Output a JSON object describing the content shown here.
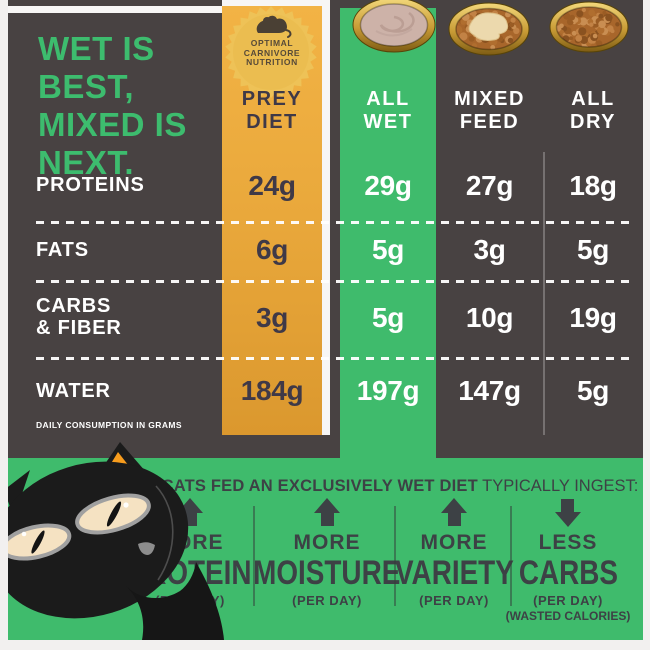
{
  "title_lines": [
    "WET IS",
    "BEST,",
    "MIXED IS",
    "NEXT."
  ],
  "badge": {
    "icon": "mouse-icon",
    "lines": [
      "OPTIMAL",
      "CARNIVORE",
      "NUTRITION"
    ]
  },
  "columns": [
    {
      "label_lines": [
        "PREY",
        "DIET"
      ]
    },
    {
      "label_lines": [
        "ALL",
        "WET"
      ]
    },
    {
      "label_lines": [
        "MIXED",
        "FEED"
      ]
    },
    {
      "label_lines": [
        "ALL",
        "DRY"
      ]
    }
  ],
  "table": {
    "rows": [
      {
        "label": "PROTEINS",
        "values": [
          "24g",
          "29g",
          "27g",
          "18g"
        ]
      },
      {
        "label": "FATS",
        "values": [
          "6g",
          "5g",
          "3g",
          "5g"
        ]
      },
      {
        "label": "CARBS\n& FIBER",
        "values": [
          "3g",
          "5g",
          "10g",
          "19g"
        ]
      },
      {
        "label": "WATER",
        "values": [
          "184g",
          "197g",
          "147g",
          "5g"
        ]
      }
    ],
    "footnote": "DAILY CONSUMPTION IN GRAMS"
  },
  "footer": {
    "heading_bold": "CATS FED AN EXCLUSIVELY WET DIET",
    "heading_regular": " TYPICALLY INGEST:",
    "items": [
      {
        "arrow": "up",
        "qualifier": "MORE",
        "word": "PROTEIN",
        "note": "(PER DAY)",
        "note2": ""
      },
      {
        "arrow": "up",
        "qualifier": "MORE",
        "word": "MOISTURE",
        "note": "(PER DAY)",
        "note2": ""
      },
      {
        "arrow": "up",
        "qualifier": "MORE",
        "word": "VARIETY",
        "note": "(PER DAY)",
        "note2": ""
      },
      {
        "arrow": "down",
        "qualifier": "LESS",
        "word": "CARBS",
        "note": "(PER DAY)",
        "note2": "(WASTED CALORIES)"
      }
    ]
  },
  "colors": {
    "green": "#3fbb6c",
    "panel_dark": "#484242",
    "gold_top": "#f2b345",
    "gold_bottom": "#db982e",
    "badge_gold": "#eec257",
    "value_dark": "#3f3947",
    "footer_text": "#3d4145",
    "ear_orange": "#f79c1d"
  },
  "chart_data": {
    "type": "table",
    "title": "WET IS BEST, MIXED IS NEXT.",
    "columns": [
      "PREY DIET",
      "ALL WET",
      "MIXED FEED",
      "ALL DRY"
    ],
    "rows": [
      "PROTEINS",
      "FATS",
      "CARBS & FIBER",
      "WATER"
    ],
    "values_grams": [
      [
        24,
        29,
        27,
        18
      ],
      [
        6,
        5,
        3,
        5
      ],
      [
        3,
        5,
        10,
        19
      ],
      [
        184,
        197,
        147,
        5
      ]
    ],
    "unit": "g",
    "note": "DAILY CONSUMPTION IN GRAMS",
    "highlight_columns": {
      "PREY DIET": "gold (optimal carnivore nutrition)",
      "ALL WET": "green (recommended)"
    },
    "footer_claims": [
      "MORE PROTEIN (PER DAY)",
      "MORE MOISTURE (PER DAY)",
      "MORE VARIETY (PER DAY)",
      "LESS CARBS (PER DAY) (WASTED CALORIES)"
    ]
  }
}
